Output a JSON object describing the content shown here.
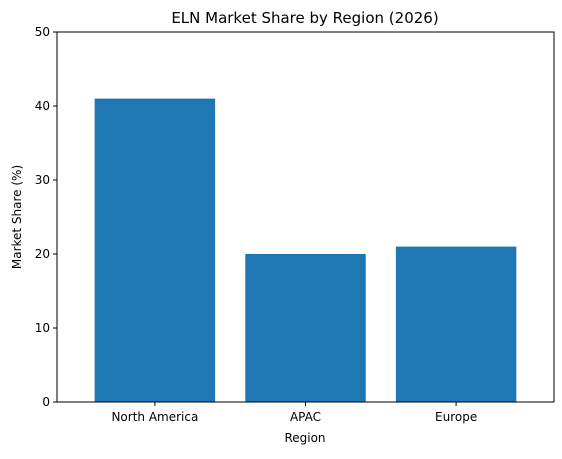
{
  "chart_data": {
    "type": "bar",
    "title": "ELN Market Share by Region (2026)",
    "xlabel": "Region",
    "ylabel": "Market Share (%)",
    "categories": [
      "North America",
      "APAC",
      "Europe"
    ],
    "values": [
      41,
      20,
      21
    ],
    "ylim": [
      0,
      50
    ],
    "yticks": [
      0,
      10,
      20,
      30,
      40,
      50
    ],
    "bar_color": "#1f77b4",
    "grid": false,
    "legend": "none"
  }
}
